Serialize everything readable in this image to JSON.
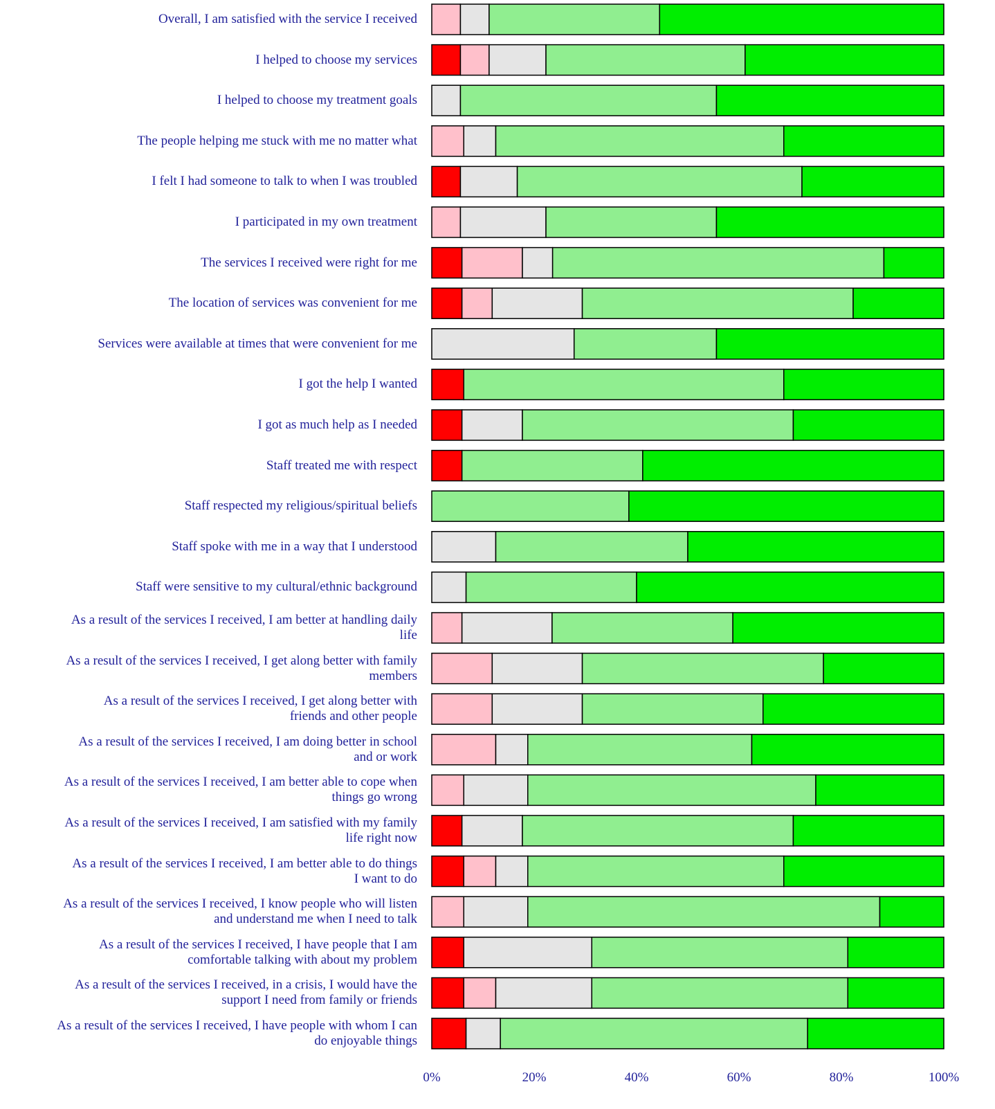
{
  "chart_data": {
    "type": "stacked_barh",
    "categories": [
      "Overall, I am satisfied with the service I received",
      "I helped to choose my services",
      "I helped to choose my treatment goals",
      "The people helping me stuck with me no matter what",
      "I felt I had someone to talk to when I was troubled",
      "I participated in my own treatment",
      "The services I received were right for me",
      "The location of services was convenient for me",
      "Services were available at times that were convenient for me",
      "I got the help I wanted",
      "I got as much help as I needed",
      "Staff treated me with respect",
      "Staff respected my religious/spiritual beliefs",
      "Staff spoke with me in a way that I understood",
      "Staff were sensitive to my cultural/ethnic background",
      "As a result of the services I received, I am better at handling daily\nlife",
      "As a result of the services I received, I get along better with family\nmembers",
      "As a result of the services I received, I get along better with\nfriends and other people",
      "As a result of the services I received, I am doing better in school\nand or work",
      "As a result of the services I received, I am better able to cope when\nthings go wrong",
      "As a result of the services I received, I am satisfied with my family\nlife right now",
      "As a result of the services I received, I am better able to do things\nI want to do",
      "As a result of the services I received, I know people who will listen\nand understand me when I need to talk",
      "As a result of the services I received, I have people that I am\ncomfortable talking with about my problem",
      "As a result of the services I received, in a crisis, I would have the\nsupport I need from family or friends",
      "As a result of the services I received, I have people with whom I can\ndo enjoyable things"
    ],
    "series": [
      {
        "color": "#ff0000",
        "values": [
          0,
          5.6,
          0,
          0,
          5.6,
          0,
          5.9,
          5.9,
          0,
          6.25,
          5.9,
          5.9,
          0,
          0,
          0,
          0,
          0,
          0,
          0,
          0,
          5.9,
          6.25,
          0,
          6.25,
          6.25,
          6.7
        ]
      },
      {
        "color": "#ffc0cb",
        "values": [
          5.6,
          5.6,
          0,
          6.25,
          0,
          5.6,
          11.8,
          5.9,
          0,
          0,
          0,
          0,
          0,
          0,
          0,
          5.9,
          11.8,
          11.8,
          12.5,
          6.25,
          0,
          6.25,
          6.25,
          0,
          6.25,
          0
        ]
      },
      {
        "color": "#e5e5e5",
        "values": [
          5.6,
          11.1,
          5.6,
          6.25,
          11.1,
          16.7,
          5.9,
          17.6,
          27.8,
          0,
          11.8,
          0,
          0,
          12.5,
          6.7,
          17.6,
          17.6,
          17.6,
          6.25,
          12.5,
          11.8,
          6.25,
          12.5,
          25,
          18.75,
          6.7
        ]
      },
      {
        "color": "#90ee90",
        "values": [
          33.3,
          38.9,
          50,
          56.25,
          55.6,
          33.3,
          64.7,
          52.9,
          27.8,
          62.5,
          52.9,
          35.3,
          38.5,
          37.5,
          33.3,
          35.3,
          47.1,
          35.3,
          43.75,
          56.25,
          52.9,
          50,
          68.75,
          50,
          50,
          60
        ]
      },
      {
        "color": "#00ee00",
        "values": [
          55.5,
          38.8,
          44.4,
          31.25,
          27.7,
          44.4,
          11.7,
          17.7,
          44.4,
          31.25,
          29.4,
          58.8,
          61.5,
          50,
          60,
          41.2,
          23.5,
          35.3,
          37.5,
          25,
          29.4,
          31.25,
          12.5,
          18.75,
          18.75,
          26.6
        ]
      }
    ],
    "xlim": [
      0,
      100
    ],
    "xticks": [
      {
        "value": 0,
        "label": "0%"
      },
      {
        "value": 20,
        "label": "20%"
      },
      {
        "value": 40,
        "label": "40%"
      },
      {
        "value": 60,
        "label": "60%"
      },
      {
        "value": 80,
        "label": "80%"
      },
      {
        "value": 100,
        "label": "100%"
      }
    ],
    "label_color": "#22229a",
    "bar_outline": "#000000"
  }
}
